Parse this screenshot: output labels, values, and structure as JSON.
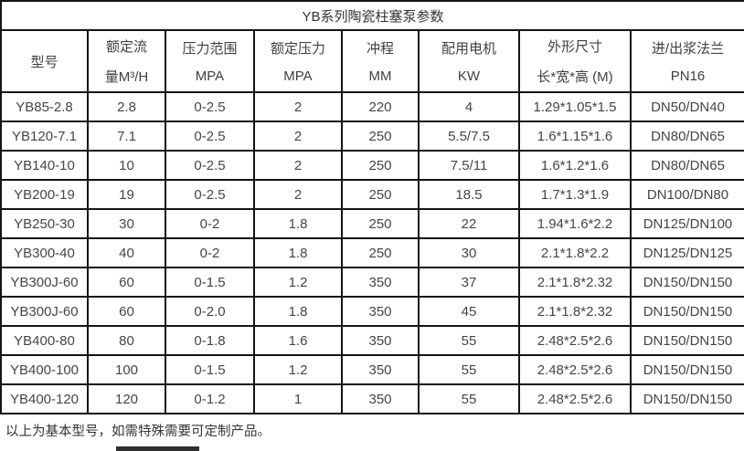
{
  "title": "YB系列陶瓷柱塞泵参数",
  "table": {
    "headers": [
      {
        "line1": "型号",
        "line2": ""
      },
      {
        "line1": "额定流",
        "line2": "量M³/H"
      },
      {
        "line1": "压力范围",
        "line2": "MPA"
      },
      {
        "line1": "额定压力",
        "line2": "MPA"
      },
      {
        "line1": "冲程",
        "line2": "MM"
      },
      {
        "line1": "配用电机",
        "line2": "KW"
      },
      {
        "line1": "外形尺寸",
        "line2": "长*宽*高 (M)"
      },
      {
        "line1": "进/出浆法兰",
        "line2": "PN16"
      }
    ],
    "rows": [
      [
        "YB85-2.8",
        "2.8",
        "0-2.5",
        "2",
        "220",
        "4",
        "1.29*1.05*1.5",
        "DN50/DN40"
      ],
      [
        "YB120-7.1",
        "7.1",
        "0-2.5",
        "2",
        "250",
        "5.5/7.5",
        "1.6*1.15*1.6",
        "DN80/DN65"
      ],
      [
        "YB140-10",
        "10",
        "0-2.5",
        "2",
        "250",
        "7.5/11",
        "1.6*1.2*1.6",
        "DN80/DN65"
      ],
      [
        "YB200-19",
        "19",
        "0-2.5",
        "2",
        "250",
        "18.5",
        "1.7*1.3*1.9",
        "DN100/DN80"
      ],
      [
        "YB250-30",
        "30",
        "0-2",
        "1.8",
        "250",
        "22",
        "1.94*1.6*2.2",
        "DN125/DN100"
      ],
      [
        "YB300-40",
        "40",
        "0-2",
        "1.8",
        "250",
        "30",
        "2.1*1.8*2.2",
        "DN125/DN125"
      ],
      [
        "YB300J-60",
        "60",
        "0-1.5",
        "1.2",
        "350",
        "37",
        "2.1*1.8*2.32",
        "DN150/DN150"
      ],
      [
        "YB300J-60",
        "60",
        "0-2.0",
        "1.8",
        "350",
        "45",
        "2.1*1.8*2.32",
        "DN150/DN150"
      ],
      [
        "YB400-80",
        "80",
        "0-1.8",
        "1.6",
        "350",
        "55",
        "2.48*2.5*2.6",
        "DN150/DN150"
      ],
      [
        "YB400-100",
        "100",
        "0-1.5",
        "1.2",
        "350",
        "55",
        "2.48*2.5*2.6",
        "DN150/DN150"
      ],
      [
        "YB400-120",
        "120",
        "0-1.2",
        "1",
        "350",
        "55",
        "2.48*2.5*2.6",
        "DN150/DN150"
      ]
    ]
  },
  "footer": {
    "note": "以上为基本型号，如需特殊需要可定制产品。"
  },
  "colors": {
    "border": "#141414",
    "text": "#3f3f3f",
    "background": "#ffffff"
  }
}
